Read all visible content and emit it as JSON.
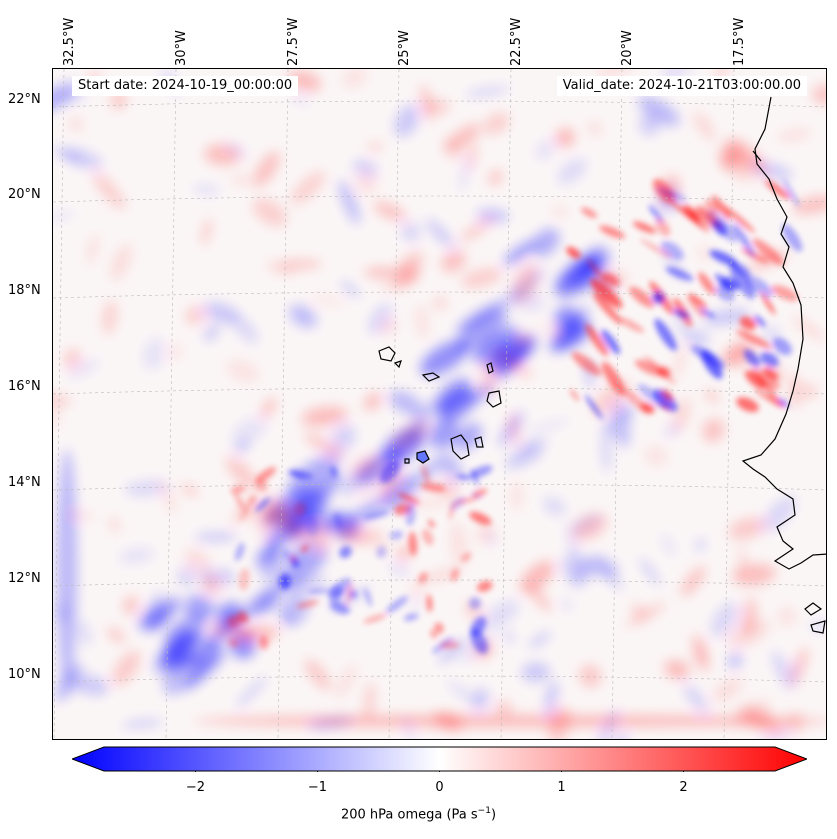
{
  "map": {
    "lon_labels": [
      "32.5°W",
      "30°W",
      "27.5°W",
      "25°W",
      "22.5°W",
      "20°W",
      "17.5°W"
    ],
    "lat_labels": [
      "22°N",
      "20°N",
      "18°N",
      "16°N",
      "14°N",
      "12°N",
      "10°N"
    ],
    "start_date": "Start date: 2024-10-19_00:00:00",
    "valid_date": "Valid_date: 2024-10-21T03:00:00.00",
    "colors": {
      "negative": "#0000ff",
      "neutral": "#ffffff",
      "positive": "#ff0000",
      "coastline": "#000000"
    }
  },
  "colorbar": {
    "ticks": [
      "−2",
      "−1",
      "0",
      "1",
      "2"
    ],
    "tick_values": [
      -2,
      -1,
      0,
      1,
      2
    ],
    "range": [
      -2.75,
      2.75
    ],
    "label": "200 hPa omega (Pa s",
    "label_sup": "−1",
    "label_end": ")"
  }
}
